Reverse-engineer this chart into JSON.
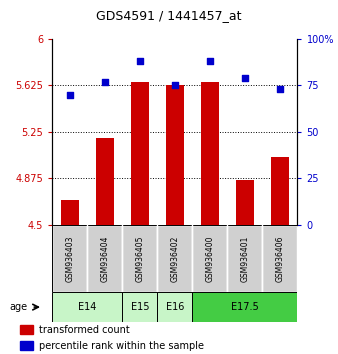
{
  "title": "GDS4591 / 1441457_at",
  "samples": [
    "GSM936403",
    "GSM936404",
    "GSM936405",
    "GSM936402",
    "GSM936400",
    "GSM936401",
    "GSM936406"
  ],
  "red_values": [
    4.7,
    5.2,
    5.65,
    5.625,
    5.65,
    4.86,
    5.05
  ],
  "blue_values": [
    70,
    77,
    88,
    75,
    88,
    79,
    73
  ],
  "age_groups": [
    {
      "label": "E14",
      "start": 0,
      "end": 2,
      "color": "#c8f5c8"
    },
    {
      "label": "E15",
      "start": 2,
      "end": 3,
      "color": "#c8f5c8"
    },
    {
      "label": "E16",
      "start": 3,
      "end": 4,
      "color": "#c8f5c8"
    },
    {
      "label": "E17.5",
      "start": 4,
      "end": 7,
      "color": "#44cc44"
    }
  ],
  "ylim_left": [
    4.5,
    6.0
  ],
  "ylim_right": [
    0,
    100
  ],
  "yticks_left": [
    4.5,
    4.875,
    5.25,
    5.625,
    6.0
  ],
  "yticks_right": [
    0,
    25,
    50,
    75,
    100
  ],
  "ytick_labels_left": [
    "4.5",
    "4.875",
    "5.25",
    "5.625",
    "6"
  ],
  "ytick_labels_right": [
    "0",
    "25",
    "50",
    "75",
    "100%"
  ],
  "bar_color": "#cc0000",
  "dot_color": "#0000cc",
  "bar_width": 0.5,
  "dot_size": 25,
  "legend_red_label": "transformed count",
  "legend_blue_label": "percentile rank within the sample"
}
